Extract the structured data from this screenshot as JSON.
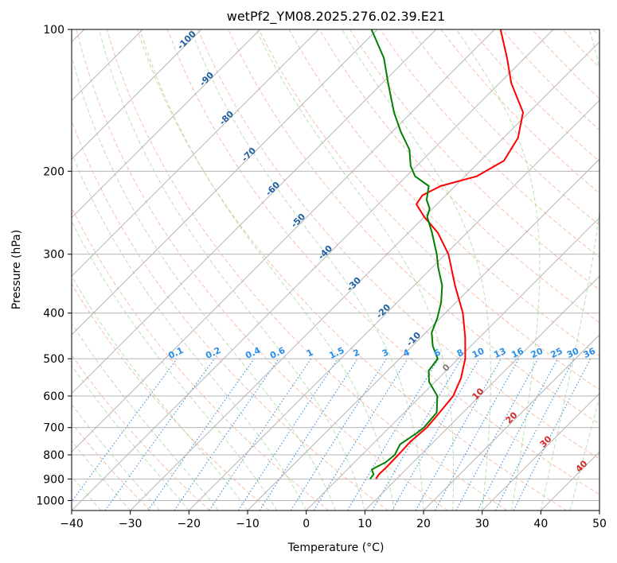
{
  "chart_data": {
    "type": "line",
    "title": "wetPf2_YM08.2025.276.02.39.E21",
    "xlabel": "Temperature (°C)",
    "ylabel": "Pressure (hPa)",
    "xlim": [
      -40,
      50
    ],
    "ylim": [
      1050,
      100
    ],
    "y_scale": "log",
    "x_ticks": [
      -40,
      -30,
      -20,
      -10,
      0,
      10,
      20,
      30,
      40,
      50
    ],
    "x_tick_labels": [
      "−40",
      "−30",
      "−20",
      "−10",
      "0",
      "10",
      "20",
      "30",
      "40",
      "50"
    ],
    "y_ticks": [
      1000,
      900,
      800,
      700,
      600,
      500,
      400,
      300,
      200,
      100
    ],
    "y_tick_labels": [
      "1000",
      "900",
      "800",
      "700",
      "600",
      "500",
      "400",
      "300",
      "200",
      "100"
    ],
    "grid": true,
    "skew": "isotherms slope up-right (about 45°)",
    "series": [
      {
        "name": "Temperature",
        "color": "#ff0000",
        "pressure": [
          900,
          880,
          850,
          800,
          750,
          700,
          650,
          600,
          550,
          500,
          450,
          400,
          350,
          300,
          270,
          250,
          235,
          225,
          215,
          205,
          190,
          170,
          150,
          130,
          115,
          100
        ],
        "temperature": [
          6.5,
          6.2,
          6.3,
          6.2,
          6.0,
          6.4,
          6.0,
          5.5,
          3.8,
          1.2,
          -2.5,
          -7.0,
          -13.0,
          -19.5,
          -25.0,
          -30.0,
          -33.5,
          -34.0,
          -32.5,
          -28.0,
          -26.0,
          -27.5,
          -31.0,
          -38.0,
          -43.0,
          -49.0
        ]
      },
      {
        "name": "Dewpoint",
        "color": "#008000",
        "pressure": [
          900,
          880,
          860,
          850,
          830,
          800,
          760,
          720,
          700,
          650,
          600,
          560,
          530,
          500,
          470,
          440,
          410,
          380,
          350,
          320,
          300,
          270,
          250,
          240,
          230,
          215,
          205,
          195,
          180,
          165,
          150,
          130,
          115,
          100
        ],
        "temperature": [
          5.5,
          5.3,
          4.2,
          4.5,
          5.3,
          5.6,
          4.7,
          5.6,
          5.9,
          5.5,
          2.8,
          -1.0,
          -3.0,
          -3.5,
          -6.5,
          -9.0,
          -10.5,
          -12.5,
          -15.2,
          -19.0,
          -21.5,
          -26.0,
          -29.5,
          -30.5,
          -32.5,
          -34.5,
          -38.5,
          -41.0,
          -44.0,
          -48.5,
          -53.0,
          -59.0,
          -64.0,
          -71.0
        ]
      }
    ],
    "dry_adiabat_labels": [
      "-100",
      "-90",
      "-80",
      "-70",
      "-60",
      "-50",
      "-40",
      "-30",
      "-20",
      "-10"
    ],
    "mixing_ratio_labels": [
      "0.1",
      "0.2",
      "0.4",
      "0.6",
      "1",
      "1.5",
      "2",
      "3",
      "4",
      "6",
      "8",
      "10",
      "13",
      "16",
      "20",
      "25",
      "30",
      "36"
    ],
    "moist_adiabat_labels": [
      "0",
      "10",
      "20",
      "30",
      "40"
    ]
  }
}
